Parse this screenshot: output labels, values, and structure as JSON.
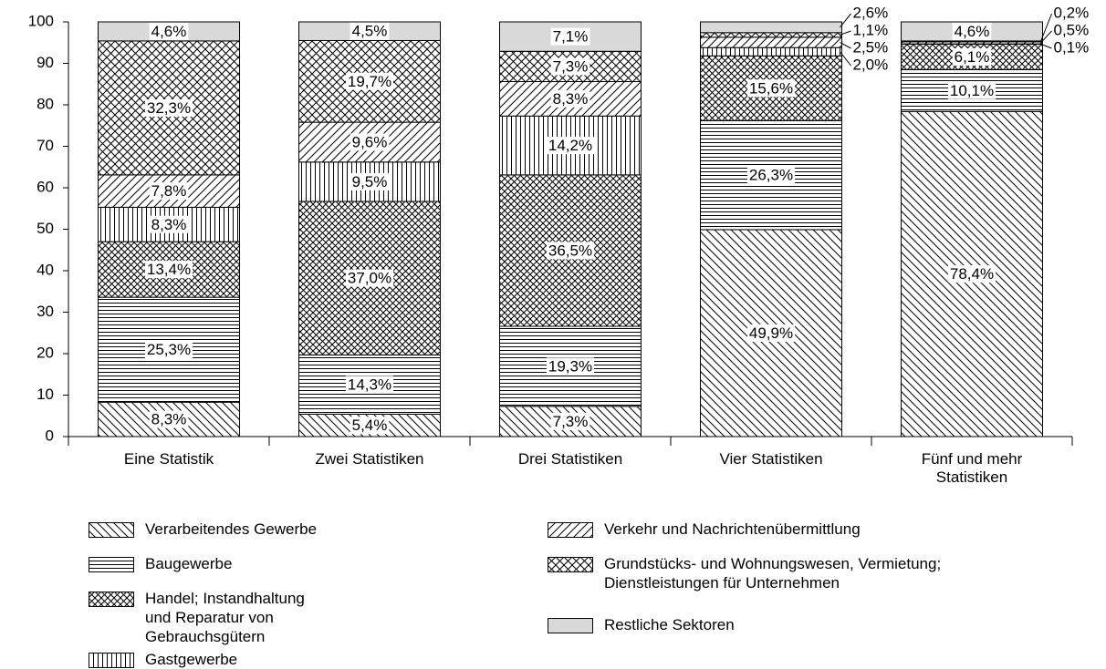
{
  "chart_data": {
    "type": "stacked-bar",
    "categories": [
      "Eine Statistik",
      "Zwei Statistiken",
      "Drei Statistiken",
      "Vier Statistiken",
      "Fünf und mehr Statistiken"
    ],
    "series": [
      {
        "name": "Verarbeitendes Gewerbe",
        "color": "#000000",
        "pattern": "diagonal-down",
        "values": [
          8.3,
          5.4,
          7.3,
          49.9,
          78.4
        ],
        "value_labels": [
          "8,3%",
          "5,4%",
          "7,3%",
          "49,9%",
          "78,4%"
        ]
      },
      {
        "name": "Baugewerbe",
        "color": "#000000",
        "pattern": "horizontal",
        "values": [
          25.3,
          14.3,
          19.3,
          26.3,
          10.1
        ],
        "value_labels": [
          "25,3%",
          "14,3%",
          "19,3%",
          "26,3%",
          "10,1%"
        ]
      },
      {
        "name": "Handel; Instandhaltung und Reparatur von Gebrauchsgütern",
        "color": "#000000",
        "pattern": "crosshatch",
        "values": [
          13.4,
          37.0,
          36.5,
          15.6,
          6.1
        ],
        "value_labels": [
          "13,4%",
          "37,0%",
          "36,5%",
          "15,6%",
          "6,1%"
        ]
      },
      {
        "name": "Gastgewerbe",
        "color": "#000000",
        "pattern": "vertical",
        "values": [
          8.3,
          9.5,
          14.2,
          2.0,
          0.1
        ],
        "value_labels": [
          "8,3%",
          "9,5%",
          "14,2%",
          "2,0%",
          "0,1%"
        ]
      },
      {
        "name": "Verkehr und Nachrichtenübermittlung",
        "color": "#000000",
        "pattern": "diagonal-up",
        "values": [
          7.8,
          9.6,
          8.3,
          2.5,
          0.5
        ],
        "value_labels": [
          "7,8%",
          "9,6%",
          "8,3%",
          "2,5%",
          "0,5%"
        ]
      },
      {
        "name": "Grundstücks- und Wohnungswesen, Vermietung; Dienstleistungen für Unternehmen",
        "color": "#000000",
        "pattern": "crosshatch-wide",
        "values": [
          32.3,
          19.7,
          7.3,
          1.1,
          0.2
        ],
        "value_labels": [
          "32,3%",
          "19,7%",
          "7,3%",
          "1,1%",
          "0,2%"
        ]
      },
      {
        "name": "Restliche Sektoren",
        "color": "#d9d9d9",
        "pattern": "solid",
        "values": [
          4.6,
          4.5,
          7.1,
          2.6,
          4.6
        ],
        "value_labels": [
          "4,6%",
          "4,5%",
          "7,1%",
          "2,6%",
          "4,6%"
        ]
      }
    ],
    "ylim": [
      0,
      100
    ],
    "yticks": [
      0,
      10,
      20,
      30,
      40,
      50,
      60,
      70,
      80,
      90,
      100
    ],
    "legend": "bottom"
  }
}
